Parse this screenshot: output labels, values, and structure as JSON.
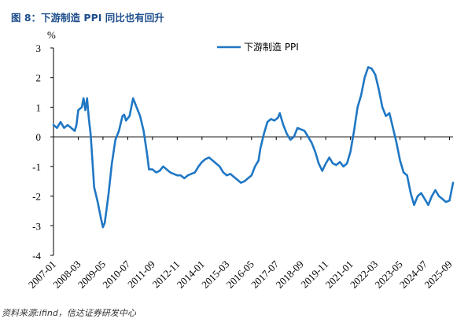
{
  "figure": {
    "title": "图 8：下游制造 PPI 同比也有回升",
    "source": "资料来源:ifind，信达证券研发中心"
  },
  "chart_data": {
    "type": "line",
    "ylabel": "%",
    "ylim": [
      -4,
      3
    ],
    "yticks": [
      "3",
      "2",
      "1",
      "0",
      "-1",
      "-2",
      "-3",
      "-4"
    ],
    "xticks": [
      "2007-01",
      "2008-03",
      "2009-05",
      "2010-07",
      "2011-09",
      "2012-11",
      "2014-01",
      "2015-03",
      "2016-05",
      "2017-07",
      "2018-09",
      "2019-11",
      "2021-01",
      "2022-03",
      "2023-05",
      "2024-07",
      "2025-09"
    ],
    "legend": "top-center",
    "grid": false,
    "color": "#1f77c4",
    "series": [
      {
        "name": "下游制造 PPI",
        "points": [
          [
            "2007-01",
            0.4
          ],
          [
            "2007-03",
            0.3
          ],
          [
            "2007-05",
            0.5
          ],
          [
            "2007-07",
            0.3
          ],
          [
            "2007-09",
            0.4
          ],
          [
            "2007-11",
            0.3
          ],
          [
            "2008-01",
            0.2
          ],
          [
            "2008-02",
            0.4
          ],
          [
            "2008-03",
            0.9
          ],
          [
            "2008-05",
            1.0
          ],
          [
            "2008-06",
            1.3
          ],
          [
            "2008-07",
            0.9
          ],
          [
            "2008-08",
            1.3
          ],
          [
            "2008-09",
            0.6
          ],
          [
            "2008-10",
            0.1
          ],
          [
            "2008-11",
            -0.8
          ],
          [
            "2008-12",
            -1.7
          ],
          [
            "2009-02",
            -2.2
          ],
          [
            "2009-04",
            -2.8
          ],
          [
            "2009-05",
            -3.05
          ],
          [
            "2009-06",
            -2.9
          ],
          [
            "2009-08",
            -2.0
          ],
          [
            "2009-10",
            -0.9
          ],
          [
            "2009-12",
            -0.1
          ],
          [
            "2010-02",
            0.2
          ],
          [
            "2010-04",
            0.7
          ],
          [
            "2010-05",
            0.75
          ],
          [
            "2010-06",
            0.55
          ],
          [
            "2010-08",
            0.7
          ],
          [
            "2010-10",
            1.3
          ],
          [
            "2010-12",
            1.0
          ],
          [
            "2011-02",
            0.7
          ],
          [
            "2011-04",
            0.2
          ],
          [
            "2011-06",
            -0.6
          ],
          [
            "2011-07",
            -1.1
          ],
          [
            "2011-09",
            -1.1
          ],
          [
            "2011-11",
            -1.2
          ],
          [
            "2012-01",
            -1.15
          ],
          [
            "2012-03",
            -1.0
          ],
          [
            "2012-05",
            -1.1
          ],
          [
            "2012-07",
            -1.2
          ],
          [
            "2012-09",
            -1.25
          ],
          [
            "2012-11",
            -1.3
          ],
          [
            "2013-01",
            -1.3
          ],
          [
            "2013-03",
            -1.4
          ],
          [
            "2013-05",
            -1.3
          ],
          [
            "2013-07",
            -1.25
          ],
          [
            "2013-09",
            -1.2
          ],
          [
            "2013-11",
            -1.0
          ],
          [
            "2014-01",
            -0.85
          ],
          [
            "2014-03",
            -0.75
          ],
          [
            "2014-05",
            -0.7
          ],
          [
            "2014-07",
            -0.8
          ],
          [
            "2014-09",
            -0.9
          ],
          [
            "2014-11",
            -1.0
          ],
          [
            "2015-01",
            -1.2
          ],
          [
            "2015-03",
            -1.3
          ],
          [
            "2015-05",
            -1.25
          ],
          [
            "2015-07",
            -1.35
          ],
          [
            "2015-09",
            -1.45
          ],
          [
            "2015-11",
            -1.55
          ],
          [
            "2016-01",
            -1.5
          ],
          [
            "2016-03",
            -1.4
          ],
          [
            "2016-05",
            -1.3
          ],
          [
            "2016-07",
            -1.0
          ],
          [
            "2016-09",
            -0.8
          ],
          [
            "2016-10",
            -0.4
          ],
          [
            "2016-12",
            0.1
          ],
          [
            "2017-02",
            0.5
          ],
          [
            "2017-04",
            0.6
          ],
          [
            "2017-06",
            0.55
          ],
          [
            "2017-08",
            0.65
          ],
          [
            "2017-09",
            0.8
          ],
          [
            "2017-11",
            0.4
          ],
          [
            "2018-01",
            0.1
          ],
          [
            "2018-03",
            -0.1
          ],
          [
            "2018-05",
            0.0
          ],
          [
            "2018-07",
            0.3
          ],
          [
            "2018-09",
            0.25
          ],
          [
            "2018-11",
            0.2
          ],
          [
            "2019-01",
            0.0
          ],
          [
            "2019-03",
            -0.2
          ],
          [
            "2019-05",
            -0.5
          ],
          [
            "2019-07",
            -0.9
          ],
          [
            "2019-09",
            -1.15
          ],
          [
            "2019-11",
            -0.9
          ],
          [
            "2020-01",
            -0.7
          ],
          [
            "2020-03",
            -0.9
          ],
          [
            "2020-05",
            -0.95
          ],
          [
            "2020-07",
            -0.85
          ],
          [
            "2020-09",
            -1.0
          ],
          [
            "2020-11",
            -0.9
          ],
          [
            "2021-01",
            -0.5
          ],
          [
            "2021-03",
            0.2
          ],
          [
            "2021-05",
            1.0
          ],
          [
            "2021-07",
            1.4
          ],
          [
            "2021-09",
            2.0
          ],
          [
            "2021-11",
            2.35
          ],
          [
            "2022-01",
            2.3
          ],
          [
            "2022-03",
            2.1
          ],
          [
            "2022-05",
            1.6
          ],
          [
            "2022-07",
            1.0
          ],
          [
            "2022-09",
            0.7
          ],
          [
            "2022-11",
            0.8
          ],
          [
            "2023-01",
            0.3
          ],
          [
            "2023-03",
            -0.2
          ],
          [
            "2023-05",
            -0.8
          ],
          [
            "2023-07",
            -1.2
          ],
          [
            "2023-09",
            -1.3
          ],
          [
            "2023-11",
            -1.9
          ],
          [
            "2024-01",
            -2.3
          ],
          [
            "2024-03",
            -2.0
          ],
          [
            "2024-05",
            -1.9
          ],
          [
            "2024-07",
            -2.1
          ],
          [
            "2024-09",
            -2.3
          ],
          [
            "2024-11",
            -2.0
          ],
          [
            "2025-01",
            -1.8
          ],
          [
            "2025-03",
            -2.0
          ],
          [
            "2025-05",
            -2.1
          ],
          [
            "2025-07",
            -2.2
          ],
          [
            "2025-09",
            -2.15
          ],
          [
            "2025-11",
            -1.55
          ]
        ]
      }
    ]
  }
}
